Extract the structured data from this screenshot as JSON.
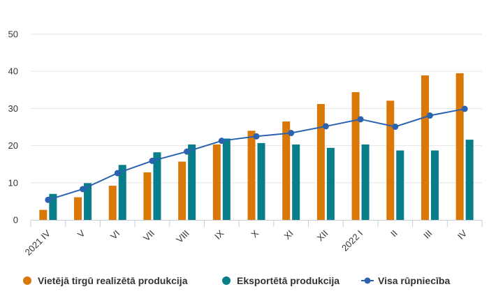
{
  "chart_data": {
    "type": "bar",
    "categories": [
      "2021 IV",
      "V",
      "VI",
      "VII",
      "VIII",
      "IX",
      "X",
      "XI",
      "XII",
      "2022 I",
      "II",
      "III",
      "IV"
    ],
    "ylim": [
      0,
      50
    ],
    "yticks": [
      "0",
      "10",
      "20",
      "30",
      "40",
      "50"
    ],
    "grid": true,
    "legend_position": "bottom",
    "series": [
      {
        "name": "Vietējā tirgū realizētā produkcija",
        "kind": "bar",
        "color": "#d97807",
        "values": [
          2.7,
          6.1,
          9.2,
          12.8,
          15.7,
          20.3,
          24.0,
          26.5,
          31.2,
          34.4,
          32.1,
          38.9,
          39.5
        ]
      },
      {
        "name": "Eksportētā produkcija",
        "kind": "bar",
        "color": "#087e8b",
        "values": [
          7.0,
          9.9,
          14.8,
          18.2,
          20.3,
          21.9,
          20.7,
          20.3,
          19.4,
          20.3,
          18.7,
          18.7,
          21.6
        ]
      },
      {
        "name": "Visa rūpniecība",
        "kind": "line",
        "color": "#2b62b0",
        "values": [
          5.4,
          8.3,
          12.6,
          15.9,
          18.4,
          21.3,
          22.5,
          23.4,
          25.2,
          27.1,
          25.1,
          28.1,
          29.9
        ]
      }
    ]
  }
}
